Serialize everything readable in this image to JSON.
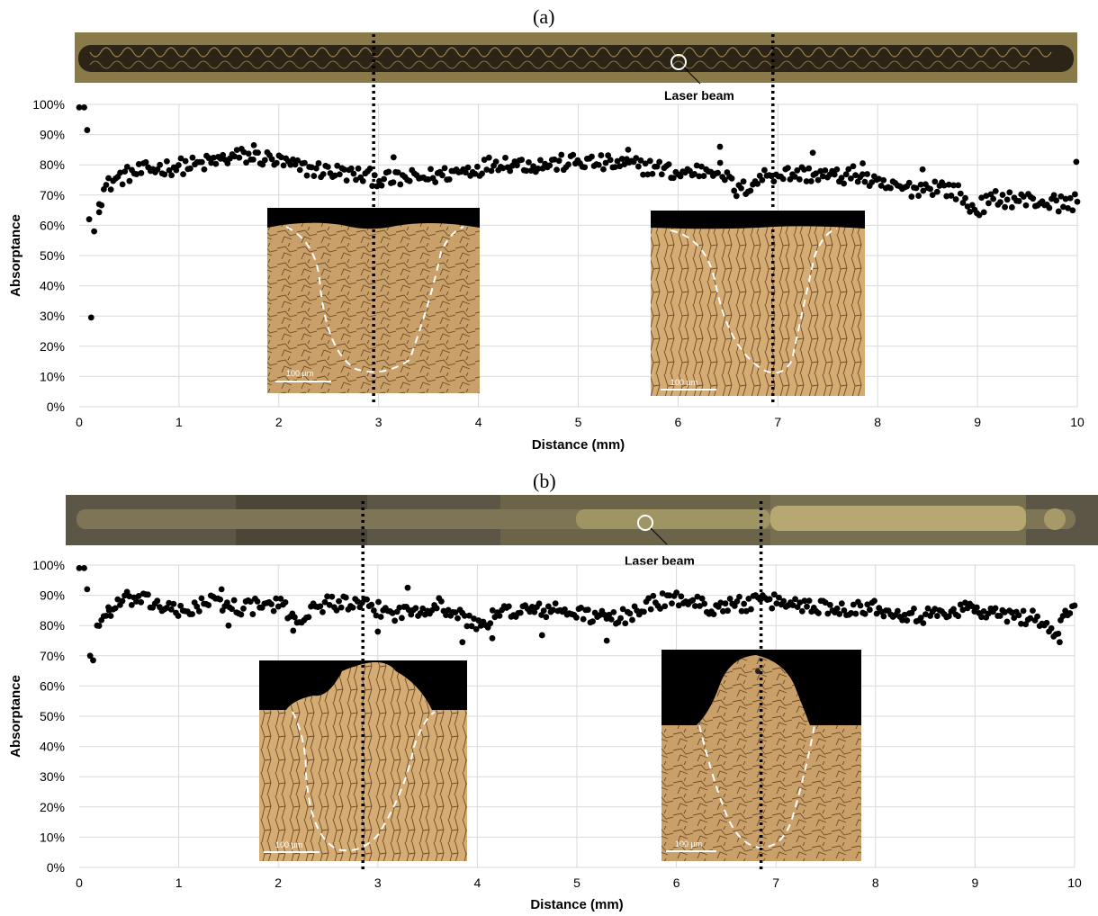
{
  "figure": {
    "panels": [
      {
        "label": "(a)",
        "strip_annotation": "Laser beam",
        "micrograph_scale": "100 µm",
        "micrograph_scale_2": "100 µm",
        "colors": {
          "strip": "#8a7a4a",
          "track": "#2b2417",
          "micro_bg": "#c9a06a",
          "dots": "#000000"
        }
      },
      {
        "label": "(b)",
        "strip_annotation": "Laser beam",
        "micrograph_scale": "100 µm",
        "micrograph_scale_2": "100 µm",
        "colors": {
          "strip": "#5c5646",
          "track": "#7d7555",
          "micro_bg": "#c9a06a",
          "dots": "#000000"
        }
      }
    ]
  },
  "chart_data": [
    {
      "type": "scatter",
      "title": "(a)",
      "xlabel": "Distance (mm)",
      "ylabel": "Absorptance",
      "xlim": [
        0,
        10
      ],
      "ylim": [
        0,
        100
      ],
      "x_ticks": [
        "0",
        "1",
        "2",
        "3",
        "4",
        "5",
        "6",
        "7",
        "8",
        "9",
        "10"
      ],
      "y_ticks": [
        "0%",
        "10%",
        "20%",
        "30%",
        "40%",
        "50%",
        "60%",
        "70%",
        "80%",
        "90%",
        "100%"
      ],
      "grid": true,
      "marker_lines_x": [
        2.95,
        6.95
      ],
      "series": [
        {
          "profile": [
            [
              0.0,
              99
            ],
            [
              0.05,
              99
            ],
            [
              0.08,
              91.5
            ],
            [
              0.1,
              62
            ],
            [
              0.12,
              29.5
            ],
            [
              0.15,
              58
            ],
            [
              0.2,
              67
            ],
            [
              0.25,
              72
            ],
            [
              0.35,
              75
            ],
            [
              0.5,
              77
            ],
            [
              0.8,
              79
            ],
            [
              1.2,
              80
            ],
            [
              1.6,
              83
            ],
            [
              1.9,
              82
            ],
            [
              2.2,
              79
            ],
            [
              2.5,
              78
            ],
            [
              2.9,
              76
            ],
            [
              3.1,
              75
            ],
            [
              3.5,
              76
            ],
            [
              4.0,
              79
            ],
            [
              4.2,
              81
            ],
            [
              4.6,
              80
            ],
            [
              5.0,
              81
            ],
            [
              5.5,
              80
            ],
            [
              5.8,
              79
            ],
            [
              6.0,
              77
            ],
            [
              6.4,
              79
            ],
            [
              6.6,
              71
            ],
            [
              6.9,
              77
            ],
            [
              7.3,
              77
            ],
            [
              7.6,
              76
            ],
            [
              7.8,
              77
            ],
            [
              8.0,
              73
            ],
            [
              8.3,
              72
            ],
            [
              8.6,
              73
            ],
            [
              8.8,
              71
            ],
            [
              8.95,
              65
            ],
            [
              9.2,
              69
            ],
            [
              9.6,
              68
            ],
            [
              9.9,
              67
            ],
            [
              10.0,
              68
            ]
          ],
          "n_points": 420,
          "noise": 2.8,
          "extra_points": [
            [
              9.99,
              81
            ],
            [
              6.42,
              86
            ],
            [
              7.35,
              84
            ],
            [
              3.15,
              82.5
            ],
            [
              5.5,
              85
            ],
            [
              1.75,
              86.5
            ],
            [
              7.85,
              80.5
            ],
            [
              8.45,
              78.5
            ]
          ]
        }
      ]
    },
    {
      "type": "scatter",
      "title": "(b)",
      "xlabel": "Distance (mm)",
      "ylabel": "Absorptance",
      "xlim": [
        0,
        10
      ],
      "ylim": [
        0,
        100
      ],
      "x_ticks": [
        "0",
        "1",
        "2",
        "3",
        "4",
        "5",
        "6",
        "7",
        "8",
        "9",
        "10"
      ],
      "y_ticks": [
        "0%",
        "10%",
        "20%",
        "30%",
        "40%",
        "50%",
        "60%",
        "70%",
        "80%",
        "90%",
        "100%"
      ],
      "grid": true,
      "marker_lines_x": [
        2.85,
        6.85
      ],
      "series": [
        {
          "profile": [
            [
              0.0,
              99
            ],
            [
              0.05,
              99
            ],
            [
              0.08,
              92
            ],
            [
              0.11,
              70
            ],
            [
              0.14,
              68.5
            ],
            [
              0.18,
              80
            ],
            [
              0.3,
              85
            ],
            [
              0.5,
              89
            ],
            [
              0.8,
              87
            ],
            [
              1.0,
              84
            ],
            [
              1.3,
              88
            ],
            [
              1.6,
              86
            ],
            [
              2.0,
              87
            ],
            [
              2.2,
              82
            ],
            [
              2.5,
              88
            ],
            [
              2.9,
              86
            ],
            [
              3.2,
              84
            ],
            [
              3.6,
              87
            ],
            [
              4.0,
              80
            ],
            [
              4.3,
              85
            ],
            [
              4.8,
              85
            ],
            [
              5.2,
              83
            ],
            [
              5.4,
              82
            ],
            [
              5.8,
              88
            ],
            [
              6.1,
              89
            ],
            [
              6.3,
              86
            ],
            [
              6.6,
              87
            ],
            [
              7.0,
              88
            ],
            [
              7.5,
              86
            ],
            [
              8.0,
              86
            ],
            [
              8.5,
              83
            ],
            [
              8.9,
              86
            ],
            [
              9.3,
              83
            ],
            [
              9.6,
              83
            ],
            [
              9.8,
              77
            ],
            [
              10.0,
              87
            ]
          ],
          "n_points": 420,
          "noise": 2.6,
          "extra_points": [
            [
              9.85,
              74.5
            ],
            [
              4.15,
              75.8
            ],
            [
              4.65,
              76.8
            ],
            [
              5.3,
              75
            ],
            [
              3.85,
              74.5
            ],
            [
              2.15,
              78.3
            ],
            [
              3.0,
              78
            ],
            [
              1.43,
              92
            ],
            [
              3.3,
              92.5
            ],
            [
              1.5,
              80
            ]
          ]
        }
      ]
    }
  ]
}
